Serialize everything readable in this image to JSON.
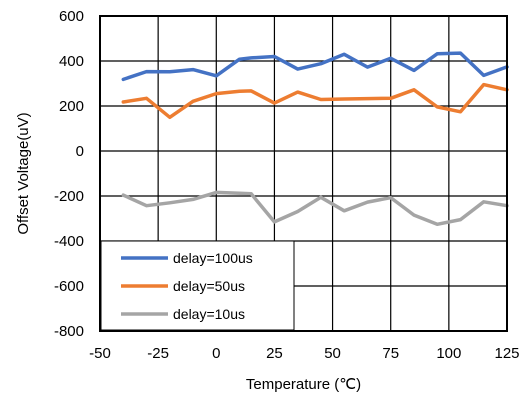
{
  "chart_data": {
    "type": "line",
    "title": "",
    "xlabel": "Temperature (℃)",
    "ylabel": "Offset Voltage(uV)",
    "xlim": [
      -50,
      125
    ],
    "ylim": [
      -800,
      600
    ],
    "xticks": [
      "-50",
      "-25",
      "0",
      "25",
      "50",
      "75",
      "100",
      "125"
    ],
    "yticks": [
      "600",
      "400",
      "200",
      "0",
      "-200",
      "-400",
      "-600",
      "-800"
    ],
    "xtick_values": [
      -50,
      -25,
      0,
      25,
      50,
      75,
      100,
      125
    ],
    "ytick_values": [
      600,
      400,
      200,
      0,
      -200,
      -400,
      -600,
      -800
    ],
    "grid": true,
    "legend_position": "bottom-left",
    "x": [
      -40,
      -30,
      -20,
      -10,
      0,
      10,
      15,
      25,
      35,
      45,
      55,
      65,
      75,
      85,
      95,
      105,
      115,
      125
    ],
    "series": [
      {
        "name": "delay=100us",
        "color": "#4472C4",
        "values": [
          318,
          353,
          352,
          362,
          334,
          408,
          414,
          420,
          364,
          388,
          430,
          373,
          412,
          358,
          432,
          435,
          336,
          374
        ]
      },
      {
        "name": "delay=50us",
        "color": "#ED7D31",
        "values": [
          218,
          234,
          150,
          221,
          255,
          266,
          267,
          213,
          262,
          229,
          231,
          233,
          234,
          272,
          196,
          174,
          295,
          272
        ]
      },
      {
        "name": "delay=10us",
        "color": "#A5A5A5",
        "values": [
          -196,
          -243,
          -230,
          -215,
          -184,
          -188,
          -190,
          -315,
          -269,
          -206,
          -266,
          -227,
          -207,
          -285,
          -326,
          -305,
          -226,
          -243
        ]
      }
    ]
  }
}
